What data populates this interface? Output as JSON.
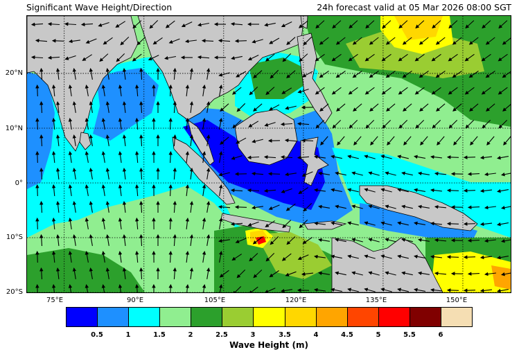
{
  "header": {
    "title_left": "Significant Wave Height/Direction",
    "title_right": "24h forecast valid at 05 Mar 2026 08:00 SGT"
  },
  "map": {
    "lon_range": [
      68,
      159
    ],
    "lat_range": [
      -20,
      30.5
    ],
    "lat_labels": [
      {
        "value": 20,
        "text": "20°N"
      },
      {
        "value": 10,
        "text": "10°N"
      },
      {
        "value": 0,
        "text": "0°"
      },
      {
        "value": -10,
        "text": "10°S"
      },
      {
        "value": -20,
        "text": "20°S"
      }
    ],
    "lon_labels": [
      {
        "value": 75,
        "text": "75°E"
      },
      {
        "value": 90,
        "text": "90°E"
      },
      {
        "value": 105,
        "text": "105°E"
      },
      {
        "value": 120,
        "text": "120°E"
      },
      {
        "value": 135,
        "text": "135°E"
      },
      {
        "value": 150,
        "text": "150°E"
      }
    ],
    "land_color": "#c8c8c8",
    "arrow_color": "#000000"
  },
  "colorbar": {
    "label": "Wave Height (m)",
    "colors": [
      "#0000ff",
      "#1e90ff",
      "#00ffff",
      "#90ee90",
      "#2ca02c",
      "#9acd32",
      "#ffff00",
      "#ffd700",
      "#ffa500",
      "#ff4500",
      "#ff0000",
      "#800000",
      "#f5deb3"
    ],
    "ticks": [
      "0.5",
      "1",
      "1.5",
      "2",
      "2.5",
      "3",
      "3.5",
      "4",
      "4.5",
      "5",
      "5.5",
      "6"
    ]
  }
}
